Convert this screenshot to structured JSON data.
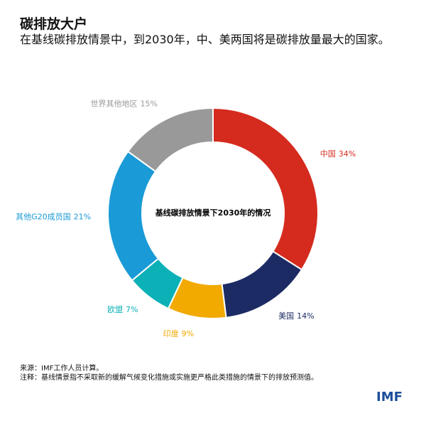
{
  "chart_data": {
    "type": "donut",
    "title": "碳排放大户",
    "subtitle": "在基线碳排放情景中，到2030年，中、美两国将是碳排放量最大的国家。",
    "center_label": "基线碳排放情景下2030年的情况",
    "categories": [
      "中国",
      "美国",
      "印度",
      "欧盟",
      "其他G20成员国",
      "世界其他地区"
    ],
    "values": [
      34,
      14,
      9,
      7,
      21,
      15
    ],
    "value_labels": [
      "34%",
      "14%",
      "9%",
      "7%",
      "21%",
      "15%"
    ],
    "colors": [
      "#d52b1e",
      "#1c2b64",
      "#f2a900",
      "#0bb1b6",
      "#1a9ad6",
      "#999999"
    ]
  },
  "footer": {
    "source": "来源：IMF工作人员计算。",
    "note": "注释：基线情景指不采取新的缓解气候变化措施或实施更严格此类措施的情景下的排放预测值。",
    "logo": "IMF"
  }
}
